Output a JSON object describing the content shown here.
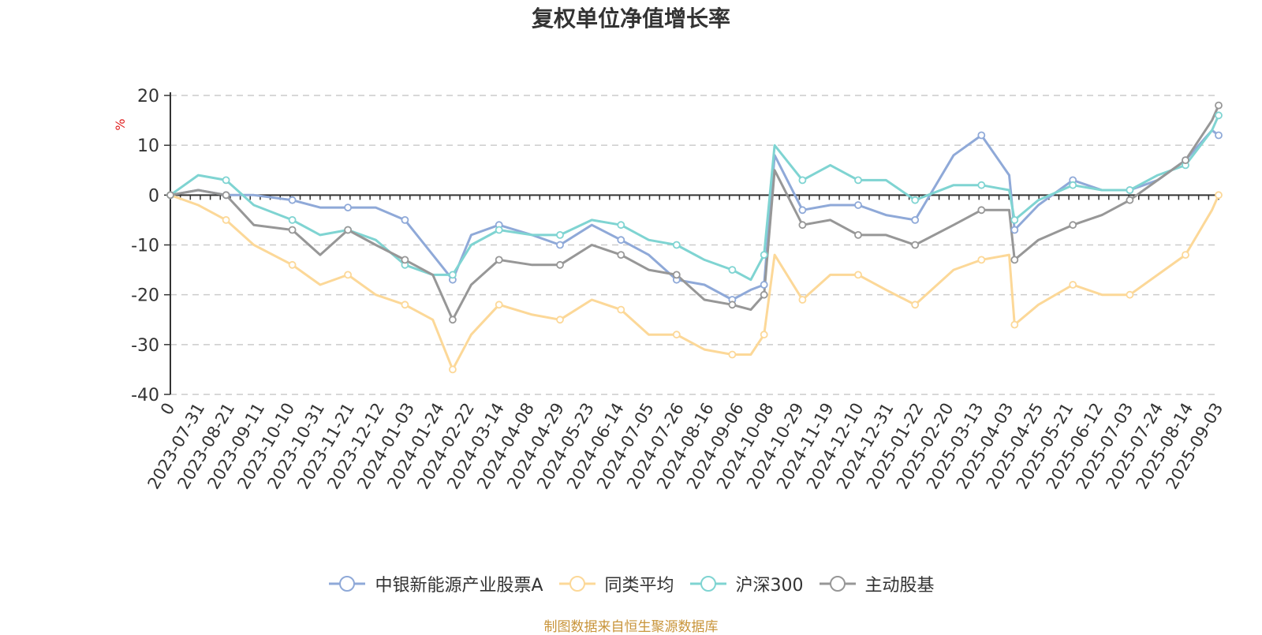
{
  "chart_title": "复权单位净值增长率",
  "source": "制图数据来自恒生聚源数据库",
  "colors": {
    "中银新能源产业股票A": "#8fa9d8",
    "同类平均": "#fcd898",
    "沪深300": "#7fd4d2",
    "主动股基": "#979797",
    "axis": "#333333",
    "grid": "#cccccc",
    "unit": "#e02020"
  },
  "chart_data": {
    "type": "line",
    "title": "复权单位净值增长率",
    "ylabel": "%",
    "ylim": [
      -40,
      20
    ],
    "yticks": [
      20,
      10,
      0,
      -10,
      -20,
      -30,
      -40
    ],
    "grid": true,
    "legend_position": "bottom",
    "x_tick_labels": [
      "0",
      "2023-07-31",
      "2023-08-21",
      "2023-09-11",
      "2023-10-10",
      "2023-10-31",
      "2023-11-21",
      "2023-12-12",
      "2024-01-03",
      "2024-01-24",
      "2024-02-22",
      "2024-03-14",
      "2024-04-08",
      "2024-04-29",
      "2024-05-23",
      "2024-06-14",
      "2024-07-05",
      "2024-07-26",
      "2024-08-16",
      "2024-09-06",
      "2024-10-08",
      "2024-10-29",
      "2024-11-19",
      "2024-12-10",
      "2024-12-31",
      "2025-01-22",
      "2025-02-20",
      "2025-03-13",
      "2025-04-03",
      "2025-04-25",
      "2025-05-21",
      "2025-06-12",
      "2025-07-03",
      "2025-07-24",
      "2025-08-14",
      "2025-09-03"
    ],
    "x": [
      "2023-07-10",
      "2023-07-31",
      "2023-08-21",
      "2023-09-11",
      "2023-10-10",
      "2023-10-31",
      "2023-11-21",
      "2023-12-12",
      "2024-01-03",
      "2024-01-24",
      "2024-02-08",
      "2024-02-22",
      "2024-03-14",
      "2024-04-08",
      "2024-04-29",
      "2024-05-23",
      "2024-06-14",
      "2024-07-05",
      "2024-07-26",
      "2024-08-16",
      "2024-09-06",
      "2024-09-20",
      "2024-09-30",
      "2024-10-08",
      "2024-10-29",
      "2024-11-19",
      "2024-12-10",
      "2024-12-31",
      "2025-01-22",
      "2025-02-20",
      "2025-03-13",
      "2025-04-03",
      "2025-04-07",
      "2025-04-25",
      "2025-05-21",
      "2025-06-12",
      "2025-07-03",
      "2025-07-24",
      "2025-08-14",
      "2025-09-03",
      "2025-09-08"
    ],
    "series": [
      {
        "name": "中银新能源产业股票A",
        "values": [
          0,
          1,
          0,
          0,
          -1,
          -2.5,
          -2.5,
          -2.5,
          -5,
          -12,
          -17,
          -8,
          -6,
          -8,
          -10,
          -6,
          -9,
          -12,
          -17,
          -18,
          -21,
          -19,
          -18,
          8,
          -3,
          -2,
          -2,
          -4,
          -5,
          8,
          12,
          4,
          -7,
          -2,
          3,
          1,
          1,
          3,
          7,
          13,
          12
        ]
      },
      {
        "name": "同类平均",
        "values": [
          0,
          -2,
          -5,
          -10,
          -14,
          -18,
          -16,
          -20,
          -22,
          -25,
          -35,
          -28,
          -22,
          -24,
          -25,
          -21,
          -23,
          -28,
          -28,
          -31,
          -32,
          -32,
          -28,
          -12,
          -21,
          -16,
          -16,
          -19,
          -22,
          -15,
          -13,
          -12,
          -26,
          -22,
          -18,
          -20,
          -20,
          -16,
          -12,
          -3,
          0
        ]
      },
      {
        "name": "沪深300",
        "values": [
          0,
          4,
          3,
          -2,
          -5,
          -8,
          -7,
          -9,
          -14,
          -16,
          -16,
          -10,
          -7,
          -8,
          -8,
          -5,
          -6,
          -9,
          -10,
          -13,
          -15,
          -17,
          -12,
          10,
          3,
          6,
          3,
          3,
          -1,
          2,
          2,
          1,
          -5,
          -1,
          2,
          1,
          1,
          4,
          6,
          13,
          16
        ]
      },
      {
        "name": "主动股基",
        "values": [
          0,
          1,
          0,
          -6,
          -7,
          -12,
          -7,
          -10,
          -13,
          -16,
          -25,
          -18,
          -13,
          -14,
          -14,
          -10,
          -12,
          -15,
          -16,
          -21,
          -22,
          -23,
          -20,
          5,
          -6,
          -5,
          -8,
          -8,
          -10,
          -6,
          -3,
          -3,
          -13,
          -9,
          -6,
          -4,
          -1,
          3,
          7,
          15,
          18
        ]
      }
    ]
  }
}
